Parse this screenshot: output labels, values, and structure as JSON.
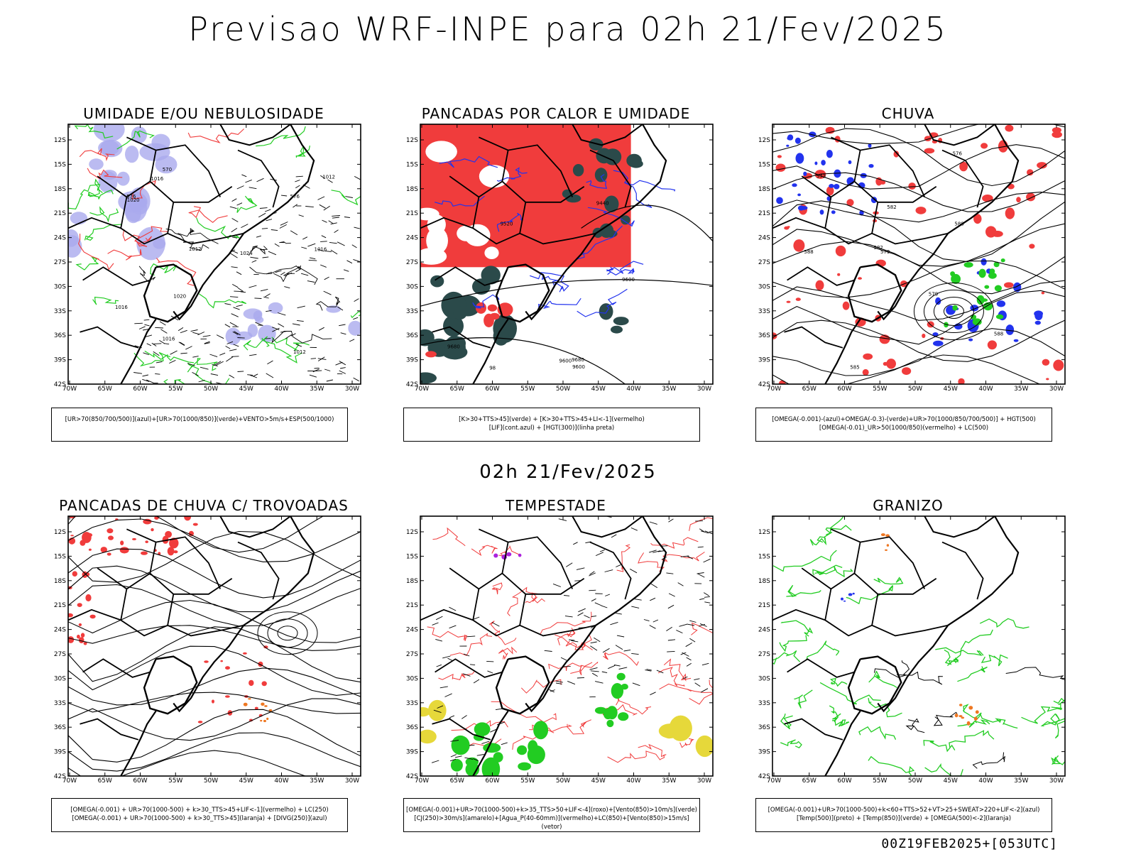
{
  "page": {
    "title": "Previsao WRF-INPE  para 02h 21/Fev/2025",
    "mid_time": "02h 21/Fev/2025",
    "footer": "00Z19FEB2025+[053UTC]"
  },
  "axes": {
    "lat_labels": [
      "12S",
      "15S",
      "18S",
      "21S",
      "24S",
      "27S",
      "30S",
      "33S",
      "36S",
      "39S",
      "42S"
    ],
    "lon_labels": [
      "70W",
      "65W",
      "60W",
      "55W",
      "50W",
      "45W",
      "40W",
      "35W",
      "30W"
    ]
  },
  "panels": [
    {
      "title": "UMIDADE E/OU NEBULOSIDADE",
      "legend_line1": "[UR>70(850/700/500)](azul)+[UR>70(1000/850)](verde)+VENTO>5m/s+ESP(500/1000)",
      "legend_line2": "",
      "contour_labels": [
        "1016",
        "1016",
        "1012",
        "1012",
        "1016",
        "1020",
        "1024",
        "1016",
        "1020",
        "1012",
        "576",
        "570",
        "576"
      ]
    },
    {
      "title": "PANCADAS POR CALOR E UMIDADE",
      "legend_line1": "[K>30+TTS>45](verde) + [K>30+TTS>45+LI<-1](vermelho)",
      "legend_line2": "[LIF](cont.azul) + [HGT(300)](linha preta)",
      "contour_labels": [
        "9600",
        "9600",
        "9680",
        "9680",
        "9600",
        "9520",
        "9440",
        "98"
      ]
    },
    {
      "title": "CHUVA",
      "legend_line1": "[OMEGA(-0.001)-(azul)+OMEGA(-0.3)-(verde)+UR>70(1000/850/700/500)] + HGT(500)",
      "legend_line2": "[OMEGA(-0.01)_UR>50(1000/850)(vermelho) + LC(500)",
      "contour_labels": [
        "588",
        "588",
        "588",
        "585",
        "579",
        "582",
        "576",
        "573",
        "579",
        "582"
      ]
    },
    {
      "title": "PANCADAS DE CHUVA C/ TROVOADAS",
      "legend_line1": "[OMEGA(-0.001) + UR>70(1000-500) + k>30_TTS>45+LIF<-1](vermelho) + LC(250)",
      "legend_line2": "[OMEGA(-0.001) + UR>70(1000-500) + k>30_TTS>45](laranja) + [DIVG(250)](azul)",
      "contour_labels": []
    },
    {
      "title": "TEMPESTADE",
      "legend_line1": "[OMEGA(-0.001)+UR>70(1000-500)+k>35_TTS>50+LIF<-4](roxo)+[Vento(850)>10m/s](verde)",
      "legend_line2": "[CJ(250)>30m/s](amarelo)+[Agua_P(40-60mm)](vermelho)+LC(850)+[Vento(850)>15m/s](vetor)",
      "contour_labels": []
    },
    {
      "title": "GRANIZO",
      "legend_line1": "[OMEGA(-0.001)+UR>70(1000-500)+k<60+TTS>52+VT>25+SWEAT>220+LIF<-2](azul)",
      "legend_line2": "[Temp(500)](preto) + [Temp(850)](verde) + [OMEGA(500)<-2](laranja)",
      "contour_labels": []
    }
  ],
  "colors": {
    "frame": "#000000",
    "red": "#f03c3c",
    "green": "#22cc22",
    "blue": "#2233ee",
    "lightblue": "#aaaaee",
    "darkteal": "#2b4a4a",
    "yellow": "#e6d83a",
    "orange": "#ee7722",
    "purple": "#aa22dd"
  }
}
